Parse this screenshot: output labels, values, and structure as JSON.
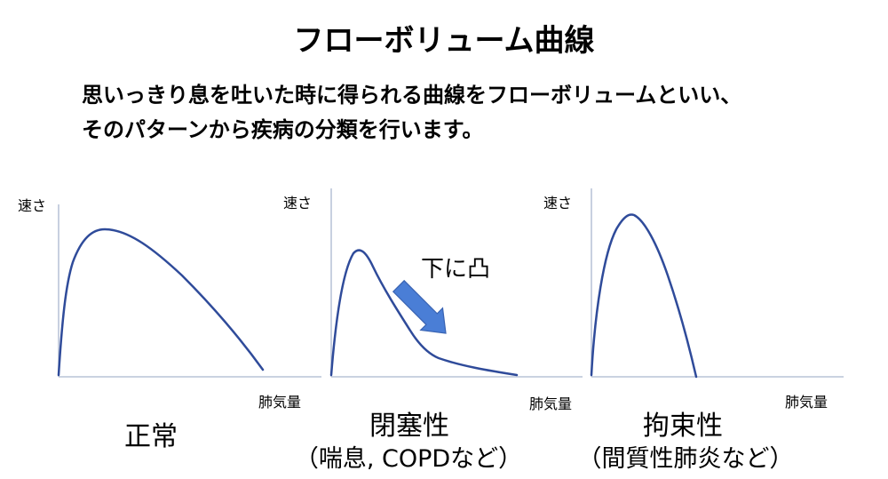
{
  "title": "フローボリューム曲線",
  "description": {
    "line1": "思いっきり息を吐いた時に得られる曲線をフローボリュームといい、",
    "line2": "そのパターンから疾病の分類を行います。"
  },
  "axis_labels": {
    "y": "速さ",
    "x": "肺気量"
  },
  "panels": [
    {
      "caption": "正常",
      "subcaption": ""
    },
    {
      "caption": "閉塞性",
      "subcaption": "（喘息, COPDなど）"
    },
    {
      "caption": "拘束性",
      "subcaption": "（間質性肺炎など）"
    }
  ],
  "annotation": {
    "label": "下に凸",
    "arrow_icon": "arrow-down-left-icon"
  },
  "colors": {
    "curve": "#2f4b9a",
    "axis": "#aab6cf",
    "arrow": "#4a7ed6"
  }
}
